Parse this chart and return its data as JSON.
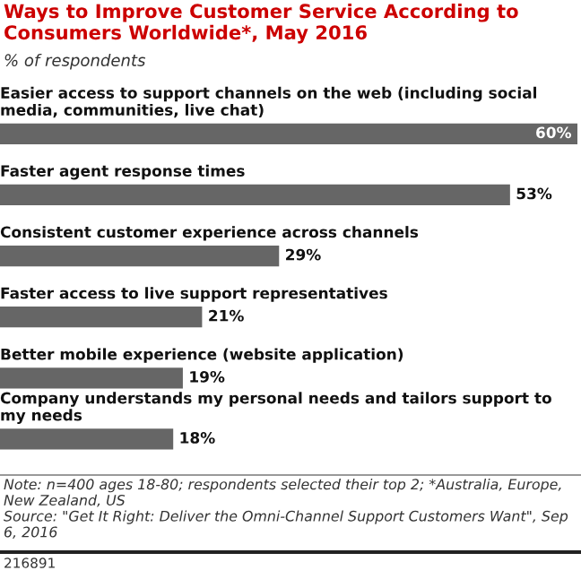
{
  "chart_data": {
    "type": "bar",
    "orientation": "horizontal",
    "title": "Ways to Improve Customer Service According to Consumers Worldwide*, May 2016",
    "subtitle": "% of respondents",
    "categories": [
      "Easier access to support channels on the web (including social media, communities, live chat)",
      "Faster agent response times",
      "Consistent customer experience across channels",
      "Faster access to live support representatives",
      "Better mobile experience (website application)",
      "Company understands my personal needs and tailors support to my needs"
    ],
    "values": [
      60,
      53,
      29,
      21,
      19,
      18
    ],
    "value_labels": [
      "60%",
      "53%",
      "29%",
      "21%",
      "19%",
      "18%"
    ],
    "color": "#666666",
    "annotations": [
      "Note: n=400 ages 18-80; respondents selected their top 2; *Australia, Europe, New Zealand, US\nSource: \"Get It Right: Deliver the Omni-Channel Support Customers Want\", Sep 6, 2016",
      "216891"
    ]
  }
}
